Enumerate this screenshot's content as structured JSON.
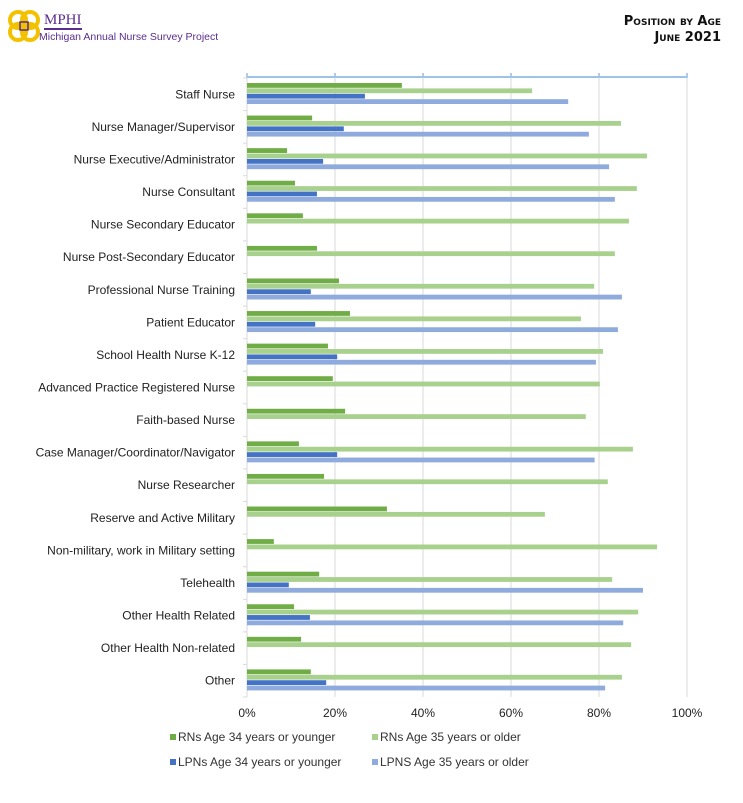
{
  "header": {
    "org": "MPHI",
    "project": "Michigan Annual Nurse Survey Project",
    "title_line1": "Position by Age",
    "title_line2": "June 2021"
  },
  "chart_data": {
    "type": "bar",
    "orientation": "horizontal",
    "categories": [
      "Staff Nurse",
      "Nurse Manager/Supervisor",
      "Nurse Executive/Administrator",
      "Nurse Consultant",
      "Nurse Secondary Educator",
      "Nurse Post-Secondary Educator",
      "Professional Nurse Training",
      "Patient Educator",
      "School Health Nurse K-12",
      "Advanced Practice Registered Nurse",
      "Faith-based Nurse",
      "Case Manager/Coordinator/Navigator",
      "Nurse Researcher",
      "Reserve and Active Military",
      "Non-military, work in Military setting",
      "Telehealth",
      "Other Health Related",
      "Other Health Non-related",
      "Other"
    ],
    "series": [
      {
        "name": "RNs Age 34 years or younger",
        "color": "#70AD47",
        "values": [
          35.2,
          14.8,
          9.1,
          10.9,
          12.7,
          15.9,
          20.9,
          23.4,
          18.4,
          19.5,
          22.3,
          11.8,
          17.5,
          31.8,
          6.1,
          16.4,
          10.7,
          12.3,
          14.5
        ]
      },
      {
        "name": "RNs Age 35 years or older",
        "color": "#A9D18E",
        "values": [
          64.8,
          85.0,
          90.9,
          88.6,
          86.8,
          83.6,
          78.9,
          75.9,
          80.9,
          80.2,
          77.0,
          87.7,
          82.0,
          67.7,
          93.2,
          83.0,
          88.9,
          87.3,
          85.2
        ]
      },
      {
        "name": "LPNs Age 34 years or younger",
        "color": "#4472C4",
        "values": [
          26.8,
          22.0,
          17.3,
          15.9,
          null,
          null,
          14.5,
          15.5,
          20.5,
          null,
          null,
          20.5,
          null,
          null,
          null,
          9.5,
          14.3,
          null,
          18.0
        ]
      },
      {
        "name": "LPNS Age 35 years or older",
        "color": "#8FAADC",
        "values": [
          73.0,
          77.7,
          82.3,
          83.6,
          null,
          null,
          85.2,
          84.3,
          79.3,
          null,
          null,
          79.0,
          null,
          null,
          null,
          90.0,
          85.5,
          null,
          81.4
        ]
      }
    ],
    "xticks": [
      "0%",
      "20%",
      "40%",
      "60%",
      "80%",
      "100%"
    ],
    "xlim": [
      0,
      100
    ],
    "grid": true,
    "legend_placement": "bottom"
  }
}
